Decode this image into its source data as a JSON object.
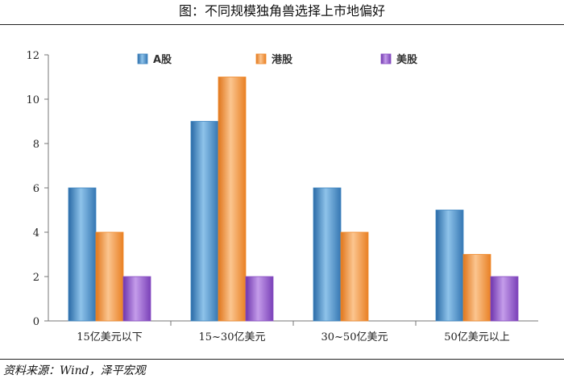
{
  "header": {
    "title": "图：不同规模独角兽选择上市地偏好"
  },
  "footer": {
    "source": "资料来源：Wind，泽平宏观"
  },
  "colors": {
    "a_share": "#3f86c1",
    "hk": "#f08a2c",
    "us": "#8a4fc4"
  },
  "chart_data": {
    "type": "bar",
    "categories": [
      "15亿美元以下",
      "15~30亿美元",
      "30~50亿美元",
      "50亿美元以上"
    ],
    "series": [
      {
        "name": "A股",
        "values": [
          6,
          9,
          6,
          5
        ]
      },
      {
        "name": "港股",
        "values": [
          4,
          11,
          4,
          3
        ]
      },
      {
        "name": "美股",
        "values": [
          2,
          2,
          0,
          2
        ]
      }
    ],
    "yticks": [
      "0",
      "2",
      "4",
      "6",
      "8",
      "10",
      "12"
    ],
    "ylim": [
      0,
      12
    ],
    "legend_position": "top",
    "grid": false
  }
}
